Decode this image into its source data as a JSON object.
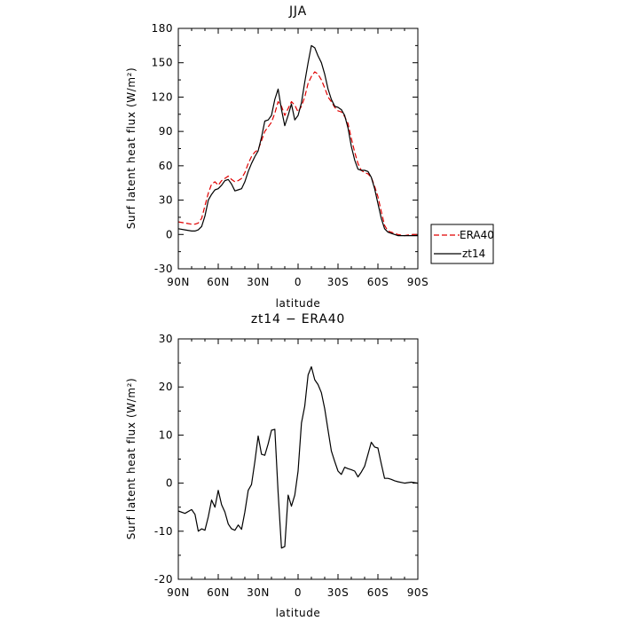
{
  "chart_data": [
    {
      "type": "line",
      "title": "JJA",
      "xlabel": "latitude",
      "ylabel": "Surf latent heat flux (W/m²)",
      "x_ticks": [
        {
          "value": 90,
          "label": "90N"
        },
        {
          "value": 60,
          "label": "60N"
        },
        {
          "value": 30,
          "label": "30N"
        },
        {
          "value": 0,
          "label": "0"
        },
        {
          "value": -30,
          "label": "30S"
        },
        {
          "value": -60,
          "label": "60S"
        },
        {
          "value": -90,
          "label": "90S"
        }
      ],
      "xlim": [
        90,
        -90
      ],
      "ylim": [
        -30,
        180
      ],
      "y_ticks": [
        -30,
        0,
        30,
        60,
        90,
        120,
        150,
        180
      ],
      "grid": false,
      "legend_position": "outside-right",
      "x": [
        90,
        85,
        80,
        77.5,
        75,
        72.5,
        70,
        67.5,
        65,
        62.5,
        60,
        57.5,
        55,
        52.5,
        50,
        47.5,
        45,
        42.5,
        40,
        37.5,
        35,
        32.5,
        30,
        27.5,
        25,
        22.5,
        20,
        17.5,
        15,
        12.5,
        10,
        7.5,
        5,
        2.5,
        0,
        -2.5,
        -5,
        -7.5,
        -10,
        -12.5,
        -15,
        -17.5,
        -20,
        -22.5,
        -25,
        -27.5,
        -30,
        -32.5,
        -35,
        -37.5,
        -40,
        -42.5,
        -45,
        -47.5,
        -50,
        -52.5,
        -55,
        -57.5,
        -60,
        -62.5,
        -65,
        -67.5,
        -70,
        -72.5,
        -75,
        -80,
        -85,
        -90
      ],
      "series": [
        {
          "name": "ERA40",
          "color": "#e00000",
          "dash": "dashed",
          "values": [
            11,
            10,
            9,
            9,
            10,
            14,
            25,
            36,
            44,
            46,
            43,
            47,
            49,
            51,
            48,
            46,
            47,
            49,
            54,
            62,
            68,
            72,
            74,
            82,
            90,
            94,
            98,
            106,
            116,
            112,
            104,
            110,
            116,
            113,
            107,
            112,
            120,
            132,
            138,
            142,
            140,
            135,
            128,
            120,
            116,
            111,
            108,
            107,
            103,
            97,
            84,
            72,
            62,
            56,
            54,
            53,
            50,
            42,
            33,
            20,
            8,
            3,
            2,
            1,
            0,
            -1,
            0,
            0
          ]
        },
        {
          "name": "zt14",
          "color": "#000000",
          "dash": "solid",
          "values": [
            5,
            4,
            3,
            3,
            4,
            7,
            16,
            30,
            35,
            39,
            40,
            43,
            47,
            48,
            44,
            38,
            39,
            40,
            46,
            55,
            62,
            68,
            73,
            85,
            99,
            100,
            104,
            118,
            127,
            109,
            95,
            104,
            114,
            100,
            104,
            115,
            133,
            150,
            165,
            163,
            156,
            150,
            140,
            127,
            118,
            112,
            111,
            109,
            104,
            93,
            77,
            65,
            57,
            56,
            56,
            55,
            50,
            40,
            27,
            14,
            5,
            2,
            1,
            0,
            -1,
            -1,
            -1,
            -1
          ]
        }
      ]
    },
    {
      "type": "line",
      "title": "zt14 − ERA40",
      "xlabel": "latitude",
      "ylabel": "Surf latent heat flux (W/m²)",
      "x_ticks": [
        {
          "value": 90,
          "label": "90N"
        },
        {
          "value": 60,
          "label": "60N"
        },
        {
          "value": 30,
          "label": "30N"
        },
        {
          "value": 0,
          "label": "0"
        },
        {
          "value": -30,
          "label": "30S"
        },
        {
          "value": -60,
          "label": "60S"
        },
        {
          "value": -90,
          "label": "90S"
        }
      ],
      "xlim": [
        90,
        -90
      ],
      "ylim": [
        -20,
        30
      ],
      "y_ticks": [
        -20,
        -10,
        0,
        10,
        20,
        30
      ],
      "grid": false,
      "x": [
        90,
        85,
        80,
        77.5,
        75,
        72.5,
        70,
        67.5,
        65,
        62.5,
        60,
        57.5,
        55,
        52.5,
        50,
        47.5,
        45,
        42.5,
        40,
        37.5,
        35,
        32.5,
        30,
        27.5,
        25,
        22.5,
        20,
        17.5,
        15,
        12.5,
        10,
        7.5,
        5,
        2.5,
        0,
        -2.5,
        -5,
        -7.5,
        -10,
        -12.5,
        -15,
        -17.5,
        -20,
        -22.5,
        -25,
        -27.5,
        -30,
        -32.5,
        -35,
        -37.5,
        -40,
        -42.5,
        -45,
        -47.5,
        -50,
        -52.5,
        -55,
        -57.5,
        -60,
        -62.5,
        -65,
        -67.5,
        -70,
        -72.5,
        -75,
        -80,
        -85,
        -90
      ],
      "series": [
        {
          "color": "#000000",
          "values": [
            -5.8,
            -6.3,
            -5.5,
            -6.5,
            -10,
            -9.5,
            -9.8,
            -7,
            -3.5,
            -5,
            -1.5,
            -4.5,
            -6,
            -8.5,
            -9.5,
            -9.8,
            -8.7,
            -9.6,
            -6,
            -1.5,
            -0.3,
            4.5,
            9.8,
            6,
            5.8,
            8.2,
            11,
            11.2,
            -2,
            -13.5,
            -13.2,
            -2.5,
            -4.8,
            -2.5,
            2.5,
            12.5,
            16,
            22.5,
            24.2,
            21.5,
            20.5,
            18.8,
            15.5,
            11,
            6.7,
            4.5,
            2.5,
            1.8,
            3.3,
            3,
            2.8,
            2.5,
            1.3,
            2.3,
            3.5,
            6,
            8.5,
            7.5,
            7.3,
            4,
            1,
            1,
            0.8,
            0.5,
            0.3,
            0,
            0.2,
            0
          ]
        }
      ]
    }
  ]
}
